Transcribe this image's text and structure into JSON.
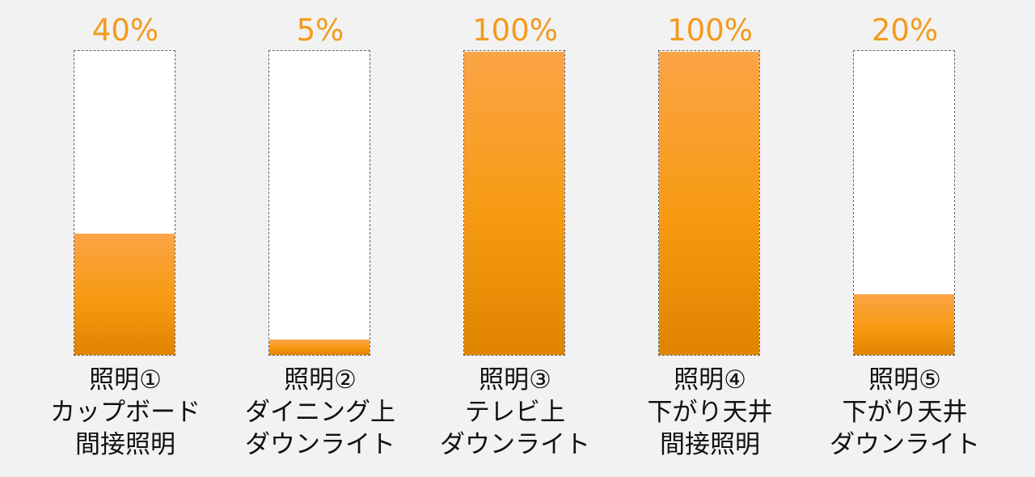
{
  "chart_data": {
    "type": "bar",
    "categories": [
      [
        "照明①",
        "カップボード",
        "間接照明"
      ],
      [
        "照明②",
        "ダイニング上",
        "ダウンライト"
      ],
      [
        "照明③",
        "テレビ上",
        "ダウンライト"
      ],
      [
        "照明④",
        "下がり天井",
        "間接照明"
      ],
      [
        "照明⑤",
        "下がり天井",
        "ダウンライト"
      ]
    ],
    "values": [
      40,
      5,
      100,
      100,
      20
    ],
    "value_labels": [
      "40%",
      "5%",
      "100%",
      "100%",
      "20%"
    ],
    "ylim": [
      0,
      100
    ],
    "grid": false,
    "colors": {
      "bar": "#f79a12",
      "value_label": "#f39a1c",
      "outline": "#666666",
      "background": "#f2f2f2"
    }
  }
}
